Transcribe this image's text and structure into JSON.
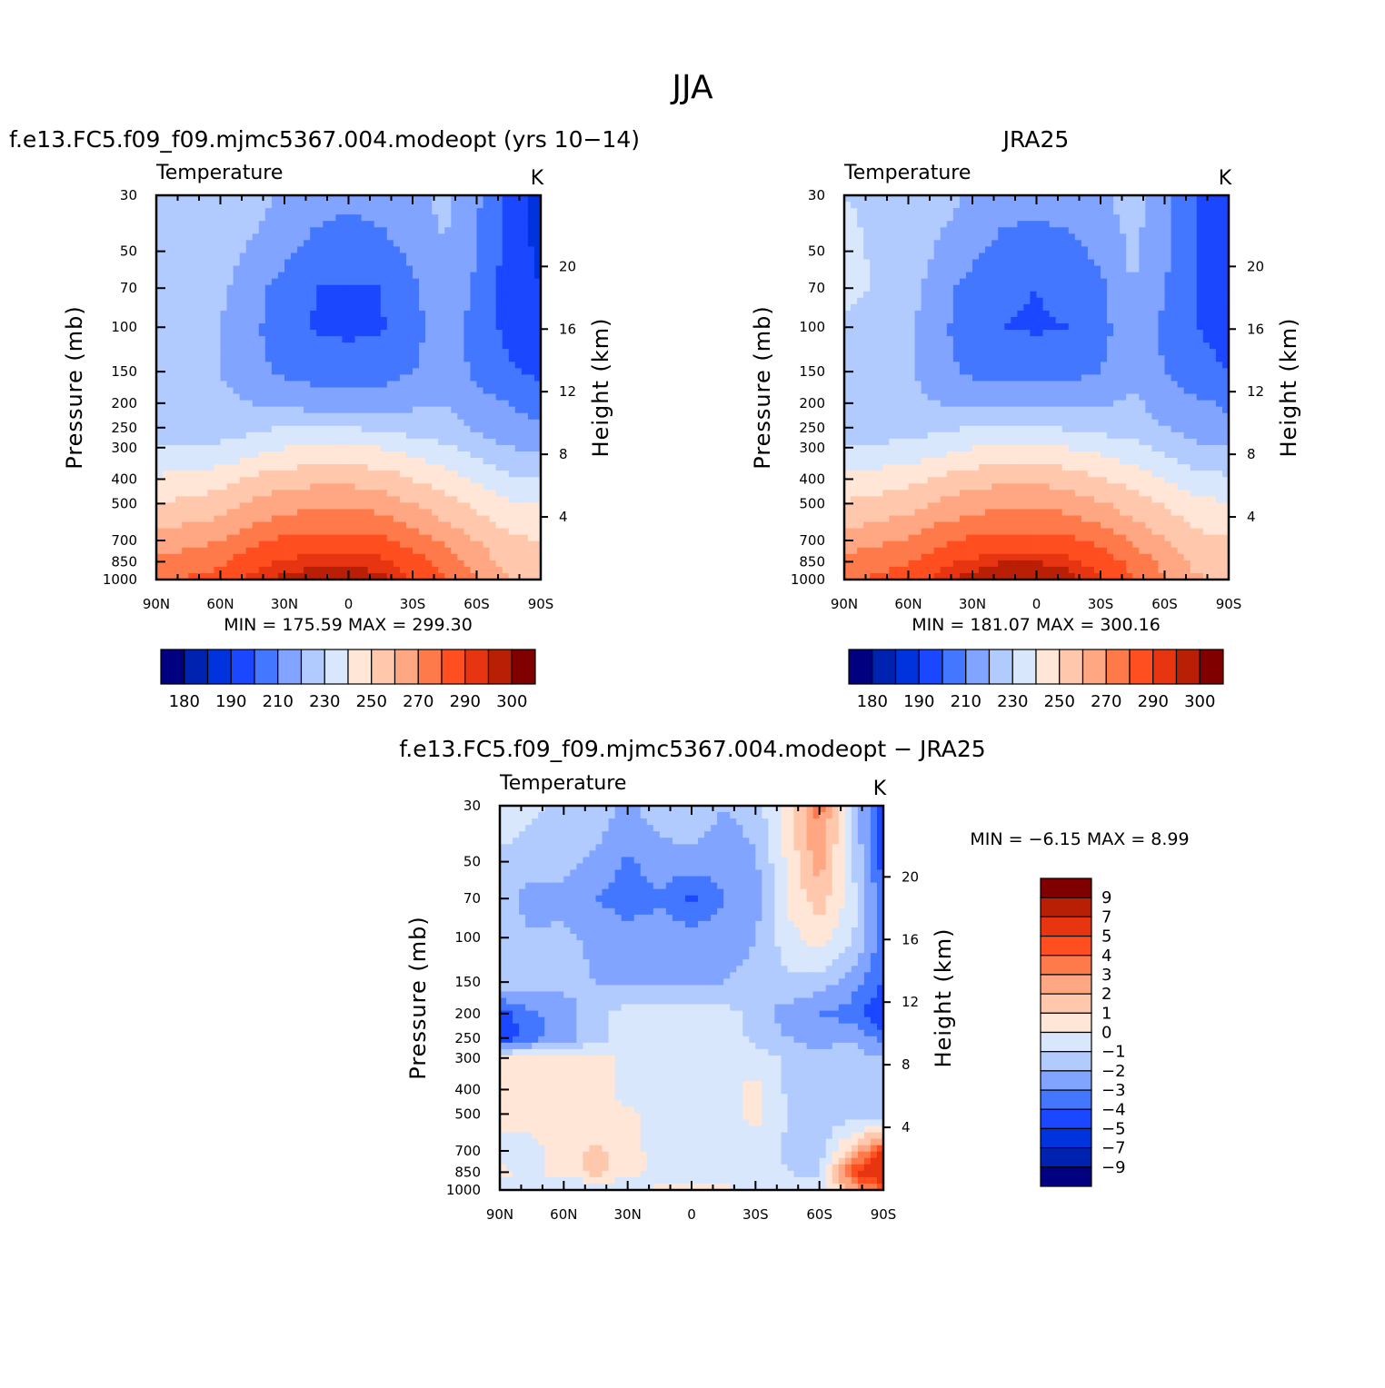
{
  "figure": {
    "title": "JJA",
    "panels": [
      {
        "id": "model",
        "title": "f.e13.FC5.f09_f09.mjmc5367.004.modeopt (yrs 10−14)",
        "var_label": "Temperature",
        "units": "K",
        "y_left_title": "Pressure  (mb)",
        "y_right_title": "Height  (km)",
        "stats": "MIN =  175.59   MAX =  299.30"
      },
      {
        "id": "obs",
        "title": "JRA25",
        "var_label": "Temperature",
        "units": "K",
        "y_left_title": "Pressure  (mb)",
        "y_right_title": "Height  (km)",
        "stats": "MIN =  181.07   MAX =  300.16"
      },
      {
        "id": "diff",
        "title": "f.e13.FC5.f09_f09.mjmc5367.004.modeopt − JRA25",
        "var_label": "Temperature",
        "units": "K",
        "y_left_title": "Pressure  (mb)",
        "y_right_title": "Height  (km)",
        "stats": "MIN =    −6.15   MAX =      8.99"
      }
    ]
  },
  "chart_data": [
    {
      "type": "heatmap",
      "title": "f.e13.FC5.f09_f09.mjmc5367.004.modeopt (yrs 10−14)",
      "var": "Temperature",
      "units": "K",
      "xlabel": "",
      "ylabel": "Pressure  (mb)",
      "y2label": "Height  (km)",
      "x_ticks": [
        "90N",
        "60N",
        "30N",
        "0",
        "30S",
        "60S",
        "90S"
      ],
      "x_range": [
        90,
        -90
      ],
      "y_ticks": [
        30,
        50,
        70,
        100,
        150,
        200,
        250,
        300,
        400,
        500,
        700,
        850,
        1000
      ],
      "y_range": [
        30,
        1000
      ],
      "y_scale": "log",
      "y2_ticks": [
        4,
        8,
        12,
        16,
        20
      ],
      "levels": [
        180,
        185,
        190,
        200,
        210,
        220,
        230,
        240,
        250,
        260,
        270,
        280,
        290,
        295,
        300
      ],
      "colorbar_labels": [
        "180",
        "190",
        "210",
        "230",
        "250",
        "270",
        "290",
        "300"
      ],
      "min": 175.59,
      "max": 299.3,
      "lat": [
        90,
        60,
        45,
        30,
        15,
        0,
        -15,
        -30,
        -45,
        -60,
        -75,
        -90
      ],
      "pressure": [
        30,
        50,
        70,
        100,
        150,
        200,
        250,
        300,
        400,
        500,
        700,
        850,
        1000
      ],
      "values": [
        [
          228,
          228,
          225,
          218,
          214,
          212,
          214,
          218,
          222,
          212,
          196,
          184
        ],
        [
          226,
          224,
          218,
          212,
          206,
          204,
          206,
          212,
          220,
          210,
          196,
          188
        ],
        [
          224,
          222,
          214,
          206,
          200,
          199,
          200,
          208,
          218,
          208,
          196,
          190
        ],
        [
          222,
          220,
          212,
          204,
          199,
          198,
          199,
          206,
          216,
          206,
          197,
          193
        ],
        [
          222,
          220,
          214,
          208,
          206,
          206,
          206,
          210,
          216,
          208,
          202,
          198
        ],
        [
          222,
          222,
          220,
          218,
          216,
          216,
          216,
          218,
          220,
          214,
          210,
          206
        ],
        [
          224,
          225,
          228,
          230,
          230,
          230,
          228,
          226,
          224,
          218,
          214,
          212
        ],
        [
          230,
          232,
          236,
          240,
          242,
          242,
          240,
          236,
          232,
          226,
          220,
          218
        ],
        [
          242,
          246,
          252,
          256,
          257,
          257,
          256,
          250,
          245,
          238,
          232,
          230
        ],
        [
          250,
          255,
          262,
          266,
          268,
          268,
          266,
          260,
          254,
          248,
          242,
          240
        ],
        [
          264,
          270,
          277,
          282,
          284,
          284,
          283,
          276,
          268,
          260,
          252,
          250
        ],
        [
          272,
          278,
          286,
          291,
          294,
          294,
          292,
          285,
          276,
          266,
          256,
          255
        ],
        [
          278,
          284,
          292,
          297,
          299,
          299,
          297,
          290,
          280,
          270,
          260,
          258
        ]
      ]
    },
    {
      "type": "heatmap",
      "title": "JRA25",
      "var": "Temperature",
      "units": "K",
      "xlabel": "",
      "ylabel": "Pressure  (mb)",
      "y2label": "Height  (km)",
      "x_ticks": [
        "90N",
        "60N",
        "30N",
        "0",
        "30S",
        "60S",
        "90S"
      ],
      "x_range": [
        90,
        -90
      ],
      "y_ticks": [
        30,
        50,
        70,
        100,
        150,
        200,
        250,
        300,
        400,
        500,
        700,
        850,
        1000
      ],
      "y_range": [
        30,
        1000
      ],
      "y_scale": "log",
      "y2_ticks": [
        4,
        8,
        12,
        16,
        20
      ],
      "levels": [
        180,
        185,
        190,
        200,
        210,
        220,
        230,
        240,
        250,
        260,
        270,
        280,
        290,
        295,
        300
      ],
      "colorbar_labels": [
        "180",
        "190",
        "210",
        "230",
        "250",
        "270",
        "290",
        "300"
      ],
      "min": 181.07,
      "max": 300.16,
      "lat": [
        90,
        60,
        45,
        30,
        15,
        0,
        -15,
        -30,
        -45,
        -60,
        -75,
        -90
      ],
      "pressure": [
        30,
        50,
        70,
        100,
        150,
        200,
        250,
        300,
        400,
        500,
        700,
        850,
        1000
      ],
      "values": [
        [
          230,
          228,
          224,
          218,
          214,
          213,
          214,
          218,
          224,
          214,
          200,
          190
        ],
        [
          232,
          226,
          218,
          212,
          206,
          205,
          207,
          212,
          222,
          212,
          200,
          192
        ],
        [
          234,
          224,
          214,
          206,
          201,
          200,
          202,
          208,
          220,
          210,
          200,
          194
        ],
        [
          226,
          222,
          212,
          204,
          200,
          199,
          200,
          206,
          218,
          208,
          200,
          196
        ],
        [
          224,
          222,
          214,
          208,
          206,
          206,
          207,
          210,
          218,
          210,
          204,
          200
        ],
        [
          222,
          222,
          220,
          218,
          217,
          217,
          217,
          218,
          222,
          216,
          212,
          208
        ],
        [
          224,
          226,
          228,
          230,
          231,
          231,
          229,
          227,
          225,
          220,
          216,
          214
        ],
        [
          230,
          233,
          236,
          240,
          242,
          242,
          240,
          237,
          233,
          228,
          222,
          220
        ],
        [
          243,
          247,
          252,
          256,
          258,
          258,
          256,
          251,
          246,
          240,
          234,
          232
        ],
        [
          251,
          256,
          262,
          266,
          268,
          268,
          266,
          261,
          255,
          249,
          243,
          241
        ],
        [
          265,
          271,
          278,
          282,
          284,
          284,
          283,
          277,
          269,
          261,
          253,
          251
        ],
        [
          273,
          279,
          287,
          292,
          295,
          295,
          293,
          286,
          277,
          267,
          257,
          256
        ],
        [
          278,
          285,
          293,
          298,
          300,
          300,
          298,
          291,
          281,
          271,
          261,
          259
        ]
      ]
    },
    {
      "type": "heatmap",
      "title": "f.e13.FC5.f09_f09.mjmc5367.004.modeopt − JRA25",
      "var": "Temperature",
      "units": "K",
      "xlabel": "",
      "ylabel": "Pressure  (mb)",
      "y2label": "Height  (km)",
      "x_ticks": [
        "90N",
        "60N",
        "30N",
        "0",
        "30S",
        "60S",
        "90S"
      ],
      "x_range": [
        90,
        -90
      ],
      "y_ticks": [
        30,
        50,
        70,
        100,
        150,
        200,
        250,
        300,
        400,
        500,
        700,
        850,
        1000
      ],
      "y_range": [
        30,
        1000
      ],
      "y_scale": "log",
      "y2_ticks": [
        4,
        8,
        12,
        16,
        20
      ],
      "levels": [
        -9,
        -7,
        -5,
        -4,
        -3,
        -2,
        -1,
        0,
        1,
        2,
        3,
        4,
        5,
        7,
        9
      ],
      "colorbar_labels": [
        "9",
        "7",
        "5",
        "4",
        "3",
        "2",
        "1",
        "0",
        "−1",
        "−2",
        "−3",
        "−4",
        "−5",
        "−7",
        "−9"
      ],
      "min": -6.15,
      "max": 8.99,
      "lat": [
        90,
        75,
        60,
        45,
        30,
        15,
        0,
        -15,
        -30,
        -45,
        -60,
        -75,
        -90
      ],
      "pressure": [
        30,
        50,
        70,
        100,
        150,
        200,
        250,
        300,
        400,
        500,
        700,
        850,
        1000
      ],
      "values": [
        [
          -0.5,
          -0.8,
          -1.2,
          -1.5,
          -2.2,
          -1.5,
          -1.0,
          -2.0,
          -1.5,
          0.5,
          3.5,
          -1.0,
          -5.0
        ],
        [
          -1.2,
          -1.5,
          -1.8,
          -2.2,
          -3.2,
          -2.5,
          -2.5,
          -2.8,
          -2.2,
          0.2,
          2.5,
          -0.8,
          -4.5
        ],
        [
          -1.5,
          -2.5,
          -2.2,
          -3.0,
          -3.5,
          -3.2,
          -4.2,
          -3.0,
          -2.5,
          0.2,
          1.5,
          -0.5,
          -3.5
        ],
        [
          -1.5,
          -1.8,
          -1.8,
          -2.2,
          -2.5,
          -2.2,
          -2.5,
          -2.3,
          -2.0,
          -0.5,
          0.5,
          -0.8,
          -3.5
        ],
        [
          -1.5,
          -1.5,
          -1.7,
          -2.0,
          -2.2,
          -2.0,
          -2.2,
          -2.0,
          -1.8,
          -1.2,
          -1.5,
          -2.5,
          -4.0
        ],
        [
          -4.5,
          -3.2,
          -2.5,
          -1.5,
          -0.5,
          -0.5,
          -0.5,
          -0.5,
          -1.5,
          -2.5,
          -3.0,
          -3.5,
          -5.0
        ],
        [
          -5.0,
          -3.5,
          -2.5,
          -1.5,
          -0.3,
          -0.3,
          -0.3,
          -0.5,
          -1.2,
          -2.0,
          -2.5,
          -2.0,
          -3.5
        ],
        [
          0.5,
          0.5,
          0.8,
          0.5,
          -0.5,
          -0.5,
          -0.5,
          -0.5,
          -0.5,
          -1.2,
          -1.5,
          -1.5,
          -2.0
        ],
        [
          0.5,
          0.8,
          0.6,
          0.5,
          -0.5,
          -0.5,
          -0.5,
          -0.4,
          0.4,
          -1.2,
          -1.5,
          -1.5,
          -1.5
        ],
        [
          0.5,
          0.6,
          0.5,
          0.5,
          0.3,
          -0.5,
          -0.5,
          -0.5,
          0.3,
          -1.0,
          -1.5,
          -1.5,
          -1.5
        ],
        [
          -0.5,
          -0.5,
          0.5,
          1.2,
          0.5,
          -0.5,
          -0.5,
          -0.5,
          -0.5,
          -1.2,
          -1.5,
          1.5,
          5.0
        ],
        [
          0.3,
          -0.3,
          0.5,
          1.5,
          0.5,
          -0.5,
          -0.5,
          -0.5,
          -0.5,
          -1.0,
          -1.2,
          4.5,
          7.0
        ],
        [
          -0.5,
          -0.7,
          -1.2,
          -1.5,
          -1.0,
          0.3,
          0.4,
          0.3,
          -0.5,
          -0.5,
          -0.8,
          2.0,
          4.0
        ]
      ]
    }
  ]
}
